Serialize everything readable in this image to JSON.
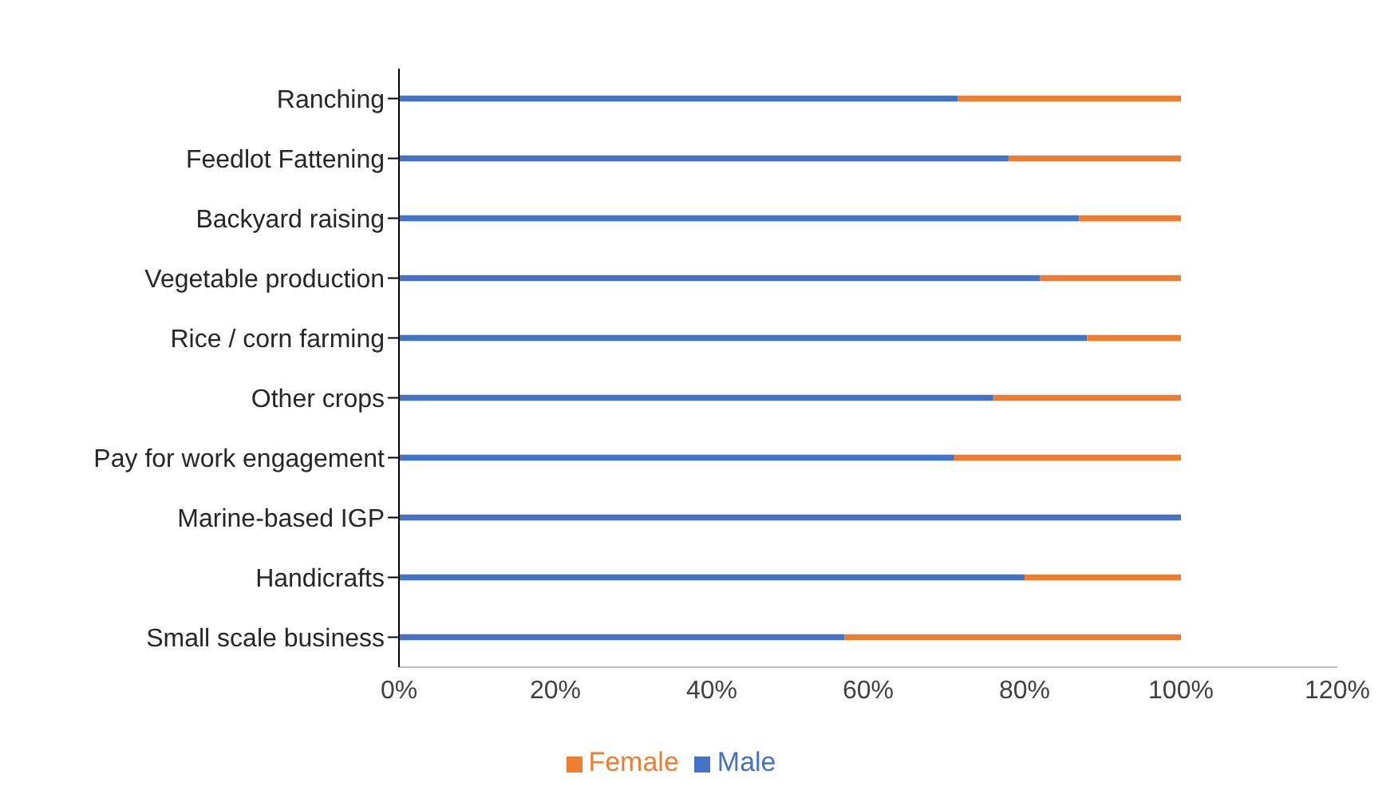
{
  "chart_data": {
    "type": "bar",
    "orientation": "horizontal",
    "stacked": true,
    "categories": [
      "Ranching",
      "Feedlot Fattening",
      "Backyard raising",
      "Vegetable production",
      "Rice / corn farming",
      "Other crops",
      "Pay for work engagement",
      "Marine-based IGP",
      "Handicrafts",
      "Small scale business"
    ],
    "series": [
      {
        "name": "Male",
        "color": "#4472c4",
        "values": [
          71.5,
          78,
          87,
          82,
          88,
          76,
          71,
          100,
          80,
          57
        ]
      },
      {
        "name": "Female",
        "color": "#ed7d31",
        "values": [
          28.5,
          22,
          13,
          18,
          12,
          24,
          29,
          0,
          20,
          43
        ]
      }
    ],
    "xlim": [
      0,
      120
    ],
    "xticks": [
      {
        "value": 0,
        "label": "0%"
      },
      {
        "value": 20,
        "label": "20%"
      },
      {
        "value": 40,
        "label": "40%"
      },
      {
        "value": 60,
        "label": "60%"
      },
      {
        "value": 80,
        "label": "80%"
      },
      {
        "value": 100,
        "label": "100%"
      },
      {
        "value": 120,
        "label": "120%"
      }
    ],
    "grid": false,
    "legend": "bottom"
  }
}
